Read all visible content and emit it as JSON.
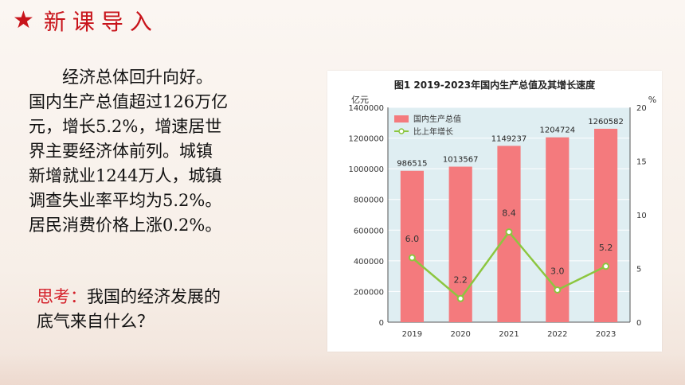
{
  "header": {
    "title": "新课导入",
    "icon": "star-icon"
  },
  "body": {
    "paragraph": [
      "经济总体回升向好。",
      "国内生产总值超过126万亿",
      "元，增长5.2%，增速居世",
      "界主要经济体前列。城镇",
      "新增就业1244万人，城镇",
      "调查失业率平均为5.2%。",
      "居民消费价格上涨0.2%。"
    ],
    "question_label": "思考：",
    "question_line1": "我国的经济发展的",
    "question_line2": "底气来自什么？"
  },
  "colors": {
    "accent": "#c8141b",
    "bar": "#f47a7d",
    "line": "#8cc63f",
    "plot_bg": "#dfeef2"
  },
  "chart_data": {
    "type": "bar",
    "title": "图1  2019-2023年国内生产总值及其增长速度",
    "left_unit": "亿元",
    "right_unit": "%",
    "categories": [
      "2019",
      "2020",
      "2021",
      "2022",
      "2023"
    ],
    "series": [
      {
        "name": "国内生产总值",
        "type": "bar",
        "axis": "left",
        "values": [
          986515,
          1013567,
          1149237,
          1204724,
          1260582
        ],
        "labels": [
          "986515",
          "1013567",
          "1149237",
          "1204724",
          "1260582"
        ]
      },
      {
        "name": "比上年增长",
        "type": "line",
        "axis": "right",
        "values": [
          6.0,
          2.2,
          8.4,
          3.0,
          5.2
        ],
        "labels": [
          "6.0",
          "2.2",
          "8.4",
          "3.0",
          "5.2"
        ]
      }
    ],
    "ylim_left": [
      0,
      1400000
    ],
    "yticks_left": [
      "0",
      "200000",
      "400000",
      "600000",
      "800000",
      "1000000",
      "1200000",
      "1400000"
    ],
    "ylim_right": [
      0,
      20
    ],
    "yticks_right": [
      "0",
      "5",
      "10",
      "15",
      "20"
    ],
    "legend": "top-left",
    "grid": true
  }
}
